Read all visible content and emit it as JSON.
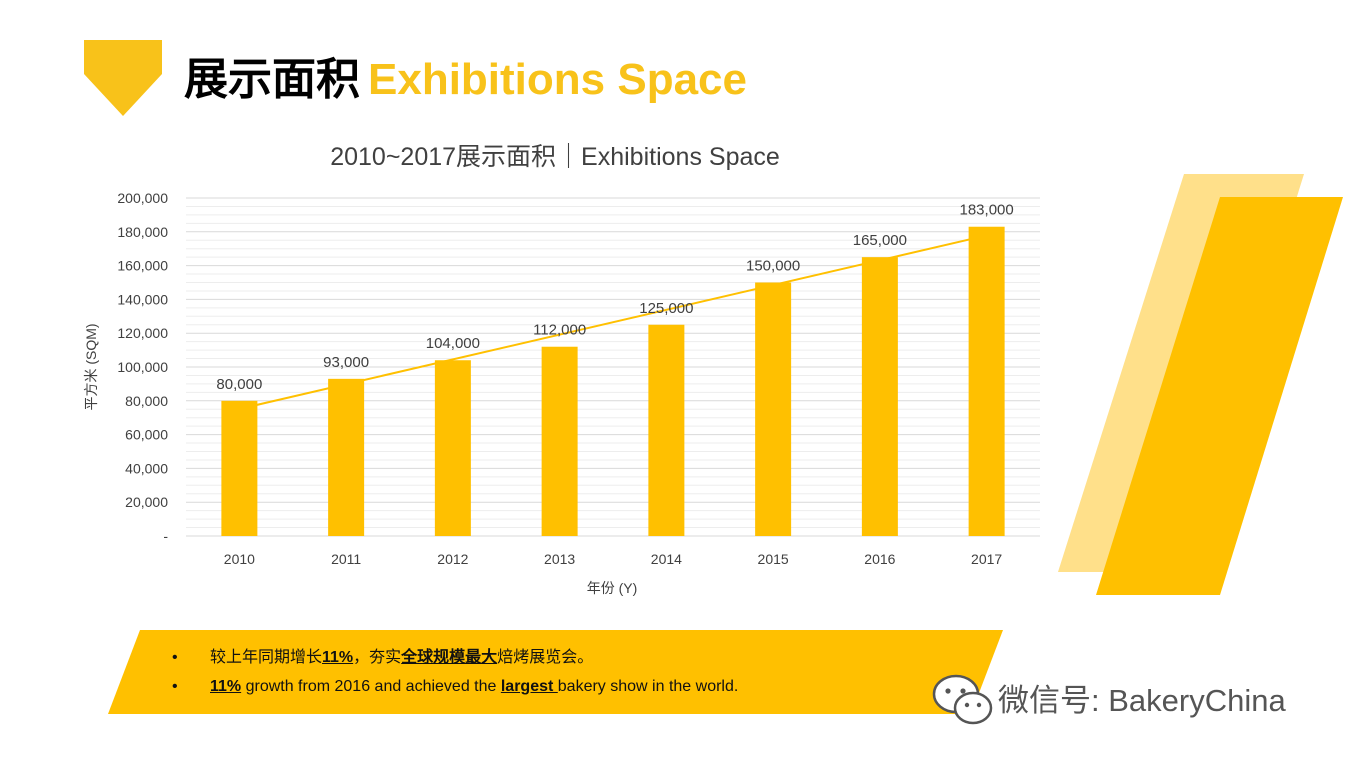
{
  "header": {
    "title_cn": "展示面积",
    "title_en": "Exhibitions Space"
  },
  "colors": {
    "accent": "#F8C21A",
    "bar": "#FFC000",
    "deco_light": "#FFE08A",
    "grid": "#D9D9D9",
    "text": "#404040"
  },
  "chart_data": {
    "type": "bar",
    "title": "2010~2017展示面积｜Exhibitions Space",
    "xlabel": "年份 (Y)",
    "ylabel": "平方米 (SQM)",
    "categories": [
      "2010",
      "2011",
      "2012",
      "2013",
      "2014",
      "2015",
      "2016",
      "2017"
    ],
    "values": [
      80000,
      93000,
      104000,
      112000,
      125000,
      150000,
      165000,
      183000
    ],
    "data_labels": [
      "80,000",
      "93,000",
      "104,000",
      "112,000",
      "125,000",
      "150,000",
      "165,000",
      "183,000"
    ],
    "ylim": [
      0,
      200000
    ],
    "yticks": [
      0,
      20000,
      40000,
      60000,
      80000,
      100000,
      120000,
      140000,
      160000,
      180000,
      200000
    ],
    "ytick_labels": [
      "-",
      "20,000",
      "40,000",
      "60,000",
      "80,000",
      "100,000",
      "120,000",
      "140,000",
      "160,000",
      "180,000",
      "200,000"
    ],
    "trendline": "linear",
    "grid": true,
    "legend": "none"
  },
  "notes": {
    "bullet": "•",
    "line1": {
      "a": "较上年同期增长",
      "b": "11%",
      "c": "，夯实",
      "d": "全球规模最大",
      "e": "焙烤展览会。"
    },
    "line2": {
      "a": "11%",
      "b": " growth from 2016 and achieved the ",
      "c": "largest ",
      "d": "bakery show in the world."
    }
  },
  "watermark": {
    "text": "微信号: BakeryChina",
    "icon": "wechat-icon"
  }
}
